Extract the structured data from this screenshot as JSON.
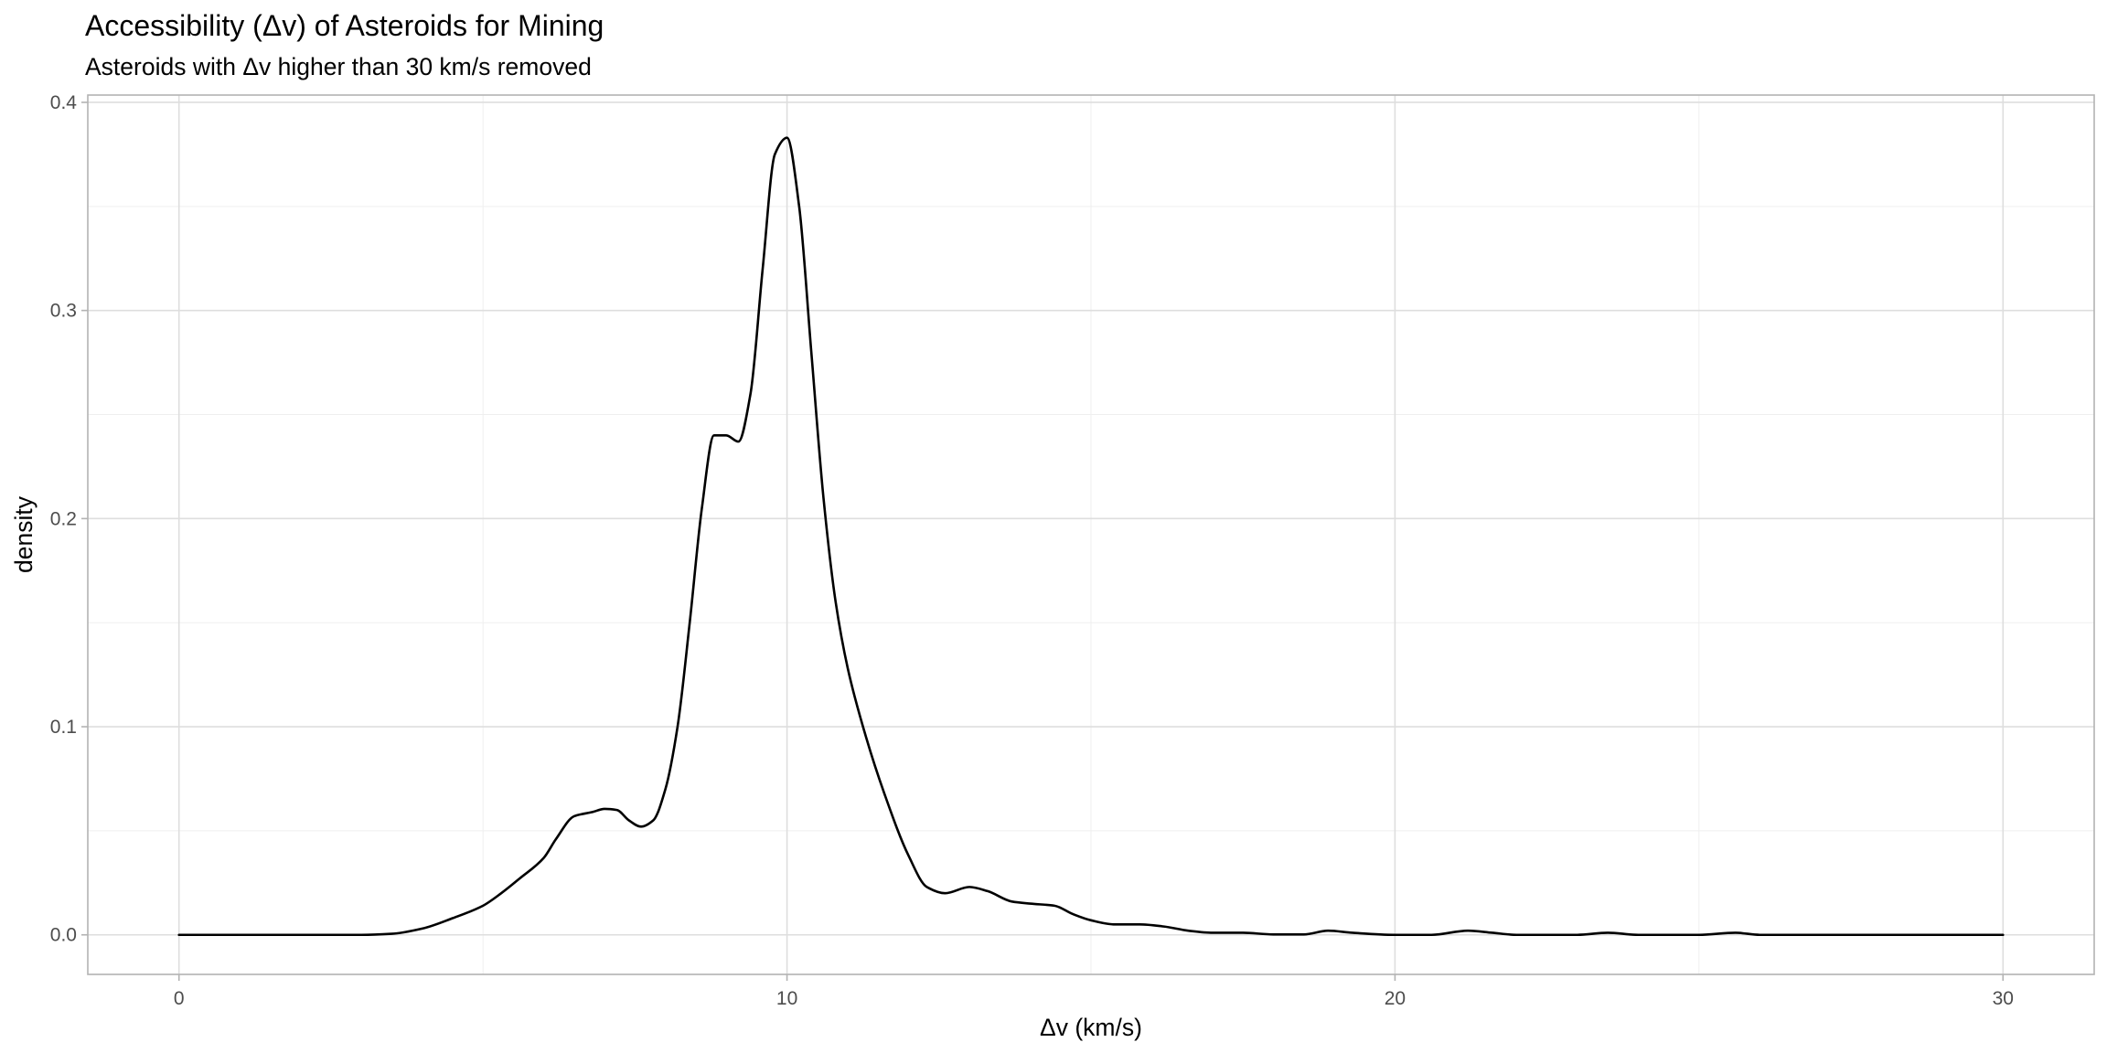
{
  "chart_data": {
    "type": "line",
    "title": "Accessibility (Δv) of Asteroids for Mining",
    "subtitle": "Asteroids with Δv higher than 30 km/s removed",
    "xlabel": "Δv (km/s)",
    "ylabel": "density",
    "xlim": [
      -1.5,
      31.5
    ],
    "ylim": [
      -0.019,
      0.4035
    ],
    "x_ticks": [
      0,
      10,
      20,
      30
    ],
    "x_tick_labels": [
      "0",
      "10",
      "20",
      "30"
    ],
    "y_ticks": [
      0.0,
      0.1,
      0.2,
      0.3,
      0.4
    ],
    "y_tick_labels": [
      "0.0",
      "0.1",
      "0.2",
      "0.3",
      "0.4"
    ],
    "grid": true,
    "legend": "none",
    "colors": {
      "line": "#000000",
      "grid_major": "#dedede",
      "grid_minor": "#efefef",
      "panel_border": "#b3b3b3",
      "tick_label": "#4d4d4d"
    },
    "series": [
      {
        "x": [
          0,
          1,
          2,
          3,
          3.5,
          4,
          4.5,
          5,
          5.3,
          5.6,
          6,
          6.2,
          6.5,
          6.8,
          7,
          7.2,
          7.4,
          7.6,
          7.8,
          8,
          8.2,
          8.4,
          8.6,
          8.8,
          9,
          9.2,
          9.4,
          9.6,
          9.8,
          10,
          10.2,
          10.4,
          10.6,
          10.8,
          11,
          11.3,
          11.6,
          12,
          12.3,
          12.6,
          13,
          13.3,
          13.7,
          14,
          14.4,
          14.7,
          15,
          15.4,
          15.8,
          16.2,
          16.6,
          17,
          17.5,
          18,
          18.5,
          18.9,
          19.3,
          20,
          20.6,
          21.2,
          21.6,
          22,
          23,
          23.5,
          24,
          25,
          25.6,
          26,
          27,
          28,
          29,
          30
        ],
        "y": [
          0,
          0,
          0,
          0,
          0.0005,
          0.003,
          0.008,
          0.014,
          0.02,
          0.027,
          0.037,
          0.046,
          0.057,
          0.059,
          0.0605,
          0.06,
          0.055,
          0.052,
          0.055,
          0.07,
          0.1,
          0.15,
          0.205,
          0.24,
          0.24,
          0.237,
          0.26,
          0.32,
          0.375,
          0.383,
          0.35,
          0.28,
          0.21,
          0.16,
          0.128,
          0.095,
          0.068,
          0.038,
          0.023,
          0.02,
          0.023,
          0.021,
          0.016,
          0.015,
          0.014,
          0.01,
          0.007,
          0.005,
          0.005,
          0.004,
          0.002,
          0.001,
          0.001,
          0.0002,
          0.0002,
          0.002,
          0.001,
          0.0,
          0.0,
          0.002,
          0.001,
          0.0,
          0.0,
          0.001,
          0.0,
          0.0,
          0.001,
          0.0,
          0.0,
          0.0,
          0.0,
          0.0
        ]
      }
    ]
  }
}
